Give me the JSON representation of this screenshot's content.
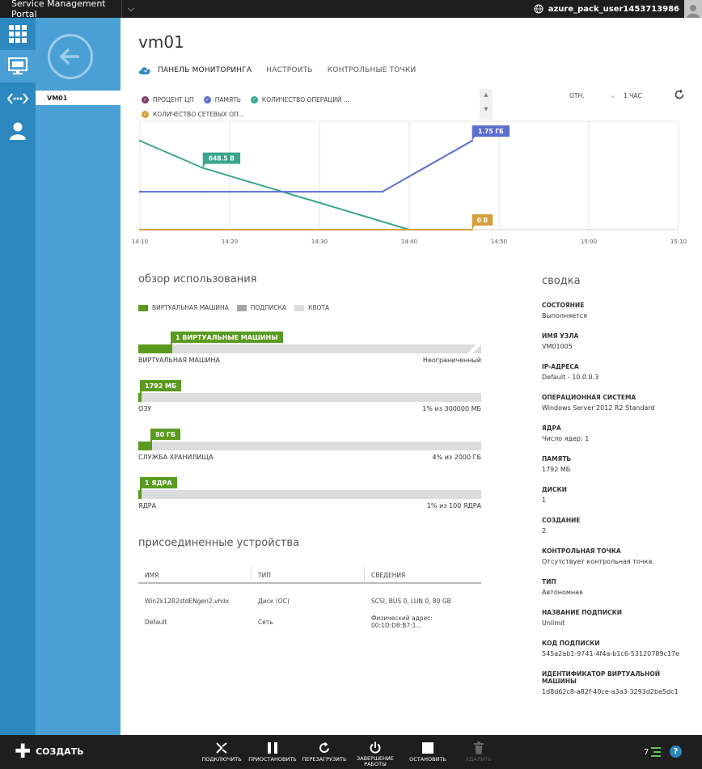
{
  "topbar": {
    "brand": "Service Management Portal",
    "user": "azure_pack_user1453713986"
  },
  "subnav": {
    "item": "VM01"
  },
  "page": {
    "title": "vm01"
  },
  "tabs": [
    {
      "label": "ПАНЕЛЬ МОНИТОРИНГА"
    },
    {
      "label": "НАСТРОИТЬ"
    },
    {
      "label": "КОНТРОЛЬНЫЕ ТОЧКИ"
    }
  ],
  "chart_legend": [
    {
      "label": "ПРОЦЕНТ ЦП",
      "color": "#7b3f6e"
    },
    {
      "label": "ПАМЯТЬ",
      "color": "#5b6fcf"
    },
    {
      "label": "КОЛИЧЕСТВО ОПЕРАЦИЙ ...",
      "color": "#3aa58f"
    },
    {
      "label": "КОЛИЧЕСТВО СЕТЕВЫХ ОП...",
      "color": "#d4a03a"
    }
  ],
  "chart_controls": {
    "mode": "ОТН.",
    "range": "1 ЧАС"
  },
  "chart_data": {
    "type": "line",
    "x_ticks": [
      "14:10",
      "14:20",
      "14:30",
      "14:40",
      "14:50",
      "15:00",
      "15:10"
    ],
    "series": [
      {
        "name": "КОЛИЧЕСТВО ОПЕРАЦИЙ ...",
        "color": "#3aa58f",
        "x": [
          0,
          7,
          30
        ],
        "y": [
          0.82,
          0.57,
          0
        ],
        "label": "648.5 В",
        "label_index": 1
      },
      {
        "name": "ПАМЯТЬ",
        "color": "#5b6fcf",
        "x": [
          0,
          7,
          27,
          37
        ],
        "y": [
          0.35,
          0.35,
          0.35,
          0.82
        ],
        "label": "1.75 ГБ",
        "label_index": 3
      },
      {
        "name": "КОЛИЧЕСТВО СЕТЕВЫХ ОП...",
        "color": "#d4a03a",
        "x": [
          0,
          37
        ],
        "y": [
          0,
          0
        ],
        "label": "0 В",
        "label_index": 1
      }
    ],
    "x_max": 60
  },
  "usage": {
    "heading": "обзор использования",
    "legend": [
      {
        "label": "ВИРТУАЛЬНАЯ МАШИНА",
        "color": "#5a9a1f"
      },
      {
        "label": "ПОДПИСКА",
        "color": "#a6a6a6"
      },
      {
        "label": "КВОТА",
        "color": "#dcdcdc"
      }
    ],
    "bars": [
      {
        "flag": "1 ВИРТУАЛЬНЫЕ МАШИНЫ",
        "label": "ВИРТУАЛЬНАЯ МАШИНА",
        "value": "Неограниченный",
        "fraction": 0.1
      },
      {
        "flag": "1792 МБ",
        "label": "ОЗУ",
        "value": "1% из 300000 МБ",
        "fraction": 0.006
      },
      {
        "flag": "80 ГБ",
        "label": "СЛУЖБА ХРАНИЛИЩА",
        "value": "4% из 2000 ГБ",
        "fraction": 0.04
      },
      {
        "flag": "1 ЯДРА",
        "label": "ЯДРА",
        "value": "1% из 100 ЯДРА",
        "fraction": 0.01
      }
    ]
  },
  "devices": {
    "heading": "присоединенные устройства",
    "headers": [
      "ИМЯ",
      "ТИП",
      "СВЕДЕНИЯ"
    ],
    "rows": [
      [
        "Win2k12R2stdENgen2.vhdx",
        "Диск (ОС)",
        "SCSI, BUS 0, LUN 0, 80 GB"
      ],
      [
        "Default",
        "Сеть",
        "Физический адрес: 00:1D:D8:B7:1..."
      ]
    ]
  },
  "summary": {
    "heading": "сводка",
    "items": [
      {
        "k": "СОСТОЯНИЕ",
        "v": "Выполняется"
      },
      {
        "k": "ИМЯ УЗЛА",
        "v": "VM01005"
      },
      {
        "k": "IP-АДРЕСА",
        "v": "Default - 10.0.0.3"
      },
      {
        "k": "ОПЕРАЦИОННАЯ СИСТЕМА",
        "v": "Windows Server 2012 R2 Standard"
      },
      {
        "k": "ЯДРА",
        "v": "Число ядер: 1"
      },
      {
        "k": "ПАМЯТЬ",
        "v": "1792 МБ"
      },
      {
        "k": "ДИСКИ",
        "v": "1"
      },
      {
        "k": "СОЗДАНИЕ",
        "v": "2"
      },
      {
        "k": "КОНТРОЛЬНАЯ ТОЧКА",
        "v": "Отсутствует контрольная точка."
      },
      {
        "k": "ТИП",
        "v": "Автономная"
      },
      {
        "k": "НАЗВАНИЕ ПОДПИСКИ",
        "v": "Unlimit"
      },
      {
        "k": "КОД ПОДПИСКИ",
        "v": "545a2ab1-9741-4f4a-b1c6-53120789c17e"
      },
      {
        "k": "ИДЕНТИФИКАТОР ВИРТУАЛЬНОЙ МАШИНЫ",
        "v": "1d8d62c8-a82f-40ce-a3a3-3293d2be5dc1"
      }
    ]
  },
  "bottombar": {
    "create": "СОЗДАТЬ",
    "actions": [
      {
        "label": "ПОДКЛЮЧИТЬ",
        "icon": "connect-icon"
      },
      {
        "label": "ПРИОСТАНОВИТЬ",
        "icon": "pause-icon"
      },
      {
        "label": "ПЕРЕЗАГРУЗИТЬ",
        "icon": "restart-icon"
      },
      {
        "label": "ЗАВЕРШЕНИЕ РАБОТЫ",
        "icon": "power-icon"
      },
      {
        "label": "ОСТАНОВИТЬ",
        "icon": "stop-icon"
      },
      {
        "label": "УДАЛИТЬ",
        "icon": "trash-icon"
      }
    ],
    "count": "7"
  }
}
